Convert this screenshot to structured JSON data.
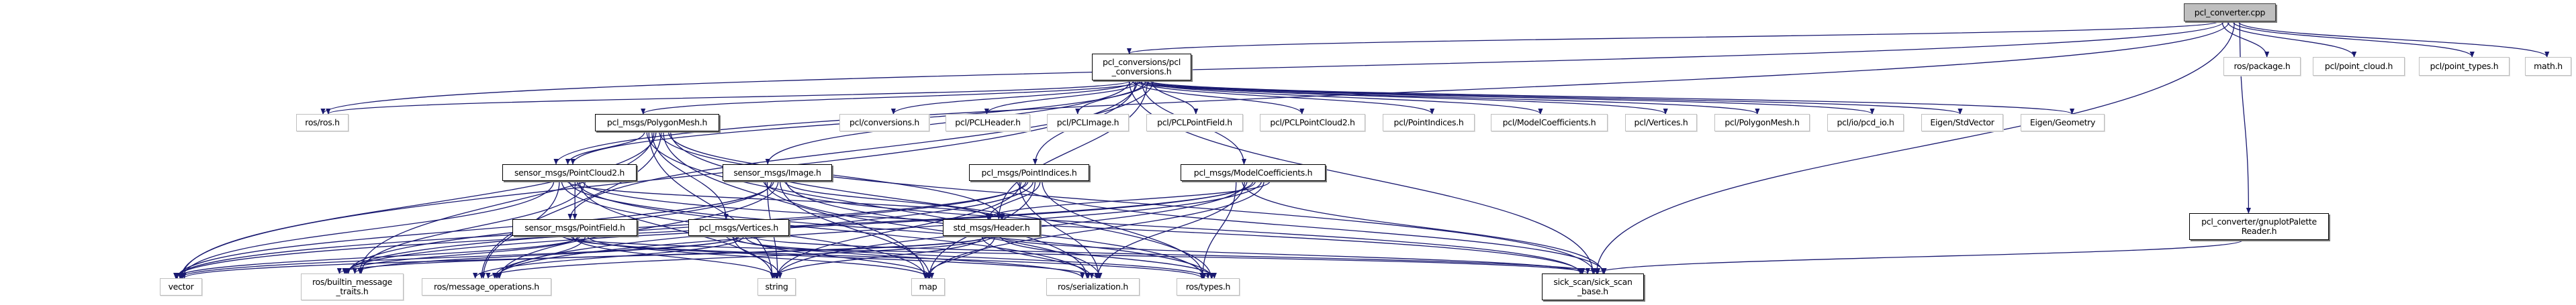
{
  "graph": {
    "edge_color": "#191970",
    "root_fill": "#bfbfbf",
    "nodes": [
      {
        "id": "cpp",
        "lines": [
          "pcl_converter.cpp"
        ],
        "kind": "root"
      },
      {
        "id": "pclconv",
        "lines": [
          "pcl_conversions/pcl",
          "_conversions.h"
        ],
        "kind": "doc"
      },
      {
        "id": "package",
        "lines": [
          "ros/package.h"
        ],
        "kind": "ext"
      },
      {
        "id": "pointcloud",
        "lines": [
          "pcl/point_cloud.h"
        ],
        "kind": "ext"
      },
      {
        "id": "pointtypes",
        "lines": [
          "pcl/point_types.h"
        ],
        "kind": "ext"
      },
      {
        "id": "math",
        "lines": [
          "math.h"
        ],
        "kind": "ext"
      },
      {
        "id": "rosros",
        "lines": [
          "ros/ros.h"
        ],
        "kind": "ext"
      },
      {
        "id": "polymesh",
        "lines": [
          "pcl_msgs/PolygonMesh.h"
        ],
        "kind": "doc"
      },
      {
        "id": "conversions",
        "lines": [
          "pcl/conversions.h"
        ],
        "kind": "ext"
      },
      {
        "id": "pclheader",
        "lines": [
          "pcl/PCLHeader.h"
        ],
        "kind": "ext"
      },
      {
        "id": "pclimage",
        "lines": [
          "pcl/PCLImage.h"
        ],
        "kind": "ext"
      },
      {
        "id": "pclpointfield",
        "lines": [
          "pcl/PCLPointField.h"
        ],
        "kind": "ext"
      },
      {
        "id": "pclpc2",
        "lines": [
          "pcl/PCLPointCloud2.h"
        ],
        "kind": "ext"
      },
      {
        "id": "pclpi",
        "lines": [
          "pcl/PointIndices.h"
        ],
        "kind": "ext"
      },
      {
        "id": "pclmc",
        "lines": [
          "pcl/ModelCoefficients.h"
        ],
        "kind": "ext"
      },
      {
        "id": "pclvert",
        "lines": [
          "pcl/Vertices.h"
        ],
        "kind": "ext"
      },
      {
        "id": "pclpm",
        "lines": [
          "pcl/PolygonMesh.h"
        ],
        "kind": "ext"
      },
      {
        "id": "pcdio",
        "lines": [
          "pcl/io/pcd_io.h"
        ],
        "kind": "ext"
      },
      {
        "id": "stdvec",
        "lines": [
          "Eigen/StdVector"
        ],
        "kind": "ext"
      },
      {
        "id": "geom",
        "lines": [
          "Eigen/Geometry"
        ],
        "kind": "ext"
      },
      {
        "id": "pc2",
        "lines": [
          "sensor_msgs/PointCloud2.h"
        ],
        "kind": "doc"
      },
      {
        "id": "image",
        "lines": [
          "sensor_msgs/Image.h"
        ],
        "kind": "doc"
      },
      {
        "id": "pi",
        "lines": [
          "pcl_msgs/PointIndices.h"
        ],
        "kind": "doc"
      },
      {
        "id": "mc",
        "lines": [
          "pcl_msgs/ModelCoefficients.h"
        ],
        "kind": "doc"
      },
      {
        "id": "pf",
        "lines": [
          "sensor_msgs/PointField.h"
        ],
        "kind": "doc"
      },
      {
        "id": "vert",
        "lines": [
          "pcl_msgs/Vertices.h"
        ],
        "kind": "doc"
      },
      {
        "id": "header",
        "lines": [
          "std_msgs/Header.h"
        ],
        "kind": "doc"
      },
      {
        "id": "gnuplot",
        "lines": [
          "pcl_converter/gnuplotPalette",
          "Reader.h"
        ],
        "kind": "doc"
      },
      {
        "id": "vector",
        "lines": [
          "vector"
        ],
        "kind": "ext"
      },
      {
        "id": "builtin",
        "lines": [
          "ros/builtin_message",
          "_traits.h"
        ],
        "kind": "ext"
      },
      {
        "id": "msgops",
        "lines": [
          "ros/message_operations.h"
        ],
        "kind": "ext"
      },
      {
        "id": "string",
        "lines": [
          "string"
        ],
        "kind": "ext"
      },
      {
        "id": "map",
        "lines": [
          "map"
        ],
        "kind": "ext"
      },
      {
        "id": "serial",
        "lines": [
          "ros/serialization.h"
        ],
        "kind": "ext"
      },
      {
        "id": "types",
        "lines": [
          "ros/types.h"
        ],
        "kind": "ext"
      },
      {
        "id": "sick",
        "lines": [
          "sick_scan/sick_scan",
          "_base.h"
        ],
        "kind": "doc"
      }
    ],
    "edges": [
      [
        "cpp",
        "pclconv"
      ],
      [
        "cpp",
        "rosros"
      ],
      [
        "cpp",
        "pc2"
      ],
      [
        "cpp",
        "sick"
      ],
      [
        "cpp",
        "gnuplot"
      ],
      [
        "cpp",
        "package"
      ],
      [
        "cpp",
        "pointcloud"
      ],
      [
        "cpp",
        "pointtypes"
      ],
      [
        "cpp",
        "math"
      ],
      [
        "pclconv",
        "rosros"
      ],
      [
        "pclconv",
        "vector"
      ],
      [
        "pclconv",
        "polymesh"
      ],
      [
        "pclconv",
        "pc2"
      ],
      [
        "pclconv",
        "image"
      ],
      [
        "pclconv",
        "pi"
      ],
      [
        "pclconv",
        "mc"
      ],
      [
        "pclconv",
        "header"
      ],
      [
        "pclconv",
        "pf"
      ],
      [
        "pclconv",
        "conversions"
      ],
      [
        "pclconv",
        "pclheader"
      ],
      [
        "pclconv",
        "pclimage"
      ],
      [
        "pclconv",
        "pclpointfield"
      ],
      [
        "pclconv",
        "pclpc2"
      ],
      [
        "pclconv",
        "pclpi"
      ],
      [
        "pclconv",
        "pclmc"
      ],
      [
        "pclconv",
        "pclvert"
      ],
      [
        "pclconv",
        "pclpm"
      ],
      [
        "pclconv",
        "pcdio"
      ],
      [
        "pclconv",
        "stdvec"
      ],
      [
        "pclconv",
        "geom"
      ],
      [
        "pclconv",
        "sick"
      ],
      [
        "polymesh",
        "string"
      ],
      [
        "polymesh",
        "vector"
      ],
      [
        "polymesh",
        "map"
      ],
      [
        "polymesh",
        "types"
      ],
      [
        "polymesh",
        "serial"
      ],
      [
        "polymesh",
        "builtin"
      ],
      [
        "polymesh",
        "msgops"
      ],
      [
        "polymesh",
        "header"
      ],
      [
        "polymesh",
        "pc2"
      ],
      [
        "polymesh",
        "vert"
      ],
      [
        "polymesh",
        "sick"
      ],
      [
        "pc2",
        "string"
      ],
      [
        "pc2",
        "vector"
      ],
      [
        "pc2",
        "map"
      ],
      [
        "pc2",
        "types"
      ],
      [
        "pc2",
        "serial"
      ],
      [
        "pc2",
        "builtin"
      ],
      [
        "pc2",
        "msgops"
      ],
      [
        "pc2",
        "header"
      ],
      [
        "pc2",
        "pf"
      ],
      [
        "pc2",
        "sick"
      ],
      [
        "image",
        "string"
      ],
      [
        "image",
        "vector"
      ],
      [
        "image",
        "map"
      ],
      [
        "image",
        "types"
      ],
      [
        "image",
        "serial"
      ],
      [
        "image",
        "builtin"
      ],
      [
        "image",
        "msgops"
      ],
      [
        "image",
        "header"
      ],
      [
        "image",
        "sick"
      ],
      [
        "pi",
        "string"
      ],
      [
        "pi",
        "vector"
      ],
      [
        "pi",
        "map"
      ],
      [
        "pi",
        "types"
      ],
      [
        "pi",
        "serial"
      ],
      [
        "pi",
        "builtin"
      ],
      [
        "pi",
        "msgops"
      ],
      [
        "pi",
        "header"
      ],
      [
        "pi",
        "sick"
      ],
      [
        "mc",
        "string"
      ],
      [
        "mc",
        "vector"
      ],
      [
        "mc",
        "map"
      ],
      [
        "mc",
        "types"
      ],
      [
        "mc",
        "serial"
      ],
      [
        "mc",
        "builtin"
      ],
      [
        "mc",
        "msgops"
      ],
      [
        "mc",
        "header"
      ],
      [
        "mc",
        "sick"
      ],
      [
        "pf",
        "string"
      ],
      [
        "pf",
        "vector"
      ],
      [
        "pf",
        "map"
      ],
      [
        "pf",
        "types"
      ],
      [
        "pf",
        "serial"
      ],
      [
        "pf",
        "builtin"
      ],
      [
        "pf",
        "msgops"
      ],
      [
        "pf",
        "sick"
      ],
      [
        "vert",
        "string"
      ],
      [
        "vert",
        "vector"
      ],
      [
        "vert",
        "map"
      ],
      [
        "vert",
        "types"
      ],
      [
        "vert",
        "serial"
      ],
      [
        "vert",
        "builtin"
      ],
      [
        "vert",
        "msgops"
      ],
      [
        "vert",
        "sick"
      ],
      [
        "header",
        "string"
      ],
      [
        "header",
        "vector"
      ],
      [
        "header",
        "map"
      ],
      [
        "header",
        "types"
      ],
      [
        "header",
        "serial"
      ],
      [
        "header",
        "builtin"
      ],
      [
        "header",
        "msgops"
      ],
      [
        "header",
        "sick"
      ],
      [
        "gnuplot",
        "sick"
      ]
    ]
  }
}
